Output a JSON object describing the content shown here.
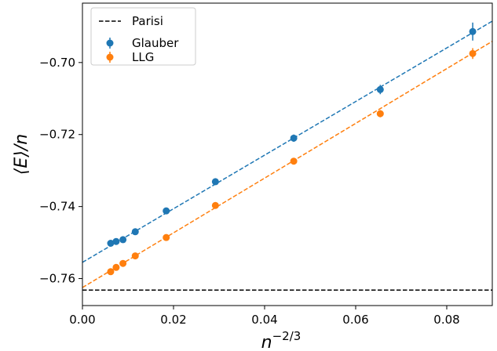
{
  "chart_data": {
    "type": "scatter",
    "xlabel": "n",
    "xlabel_sup": "−2/3",
    "ylabel": "⟨E⟩/n",
    "xlim": [
      0.0,
      0.09
    ],
    "ylim": [
      -0.7675,
      -0.6835
    ],
    "x_ticks": [
      0.0,
      0.02,
      0.04,
      0.06,
      0.08
    ],
    "x_tick_labels": [
      "0.00",
      "0.02",
      "0.04",
      "0.06",
      "0.08"
    ],
    "y_ticks": [
      -0.76,
      -0.74,
      -0.72,
      -0.7
    ],
    "y_tick_labels": [
      "−0.76",
      "−0.74",
      "−0.72",
      "−0.70"
    ],
    "grid": false,
    "legend_position": "top-left",
    "reference_line": {
      "name": "Parisi",
      "y": -0.7632,
      "color": "#000000",
      "style": "dashed"
    },
    "series": [
      {
        "name": "Glauber",
        "color": "#1f77b4",
        "points": [
          {
            "x": 0.0062,
            "y": -0.7502,
            "err": 0.0008
          },
          {
            "x": 0.0074,
            "y": -0.7497,
            "err": 0.0008
          },
          {
            "x": 0.0089,
            "y": -0.7492,
            "err": 0.0008
          },
          {
            "x": 0.0116,
            "y": -0.747,
            "err": 0.0008
          },
          {
            "x": 0.0184,
            "y": -0.7412,
            "err": 0.0008
          },
          {
            "x": 0.0292,
            "y": -0.7331,
            "err": 0.0008
          },
          {
            "x": 0.0464,
            "y": -0.721,
            "err": 0.001
          },
          {
            "x": 0.0654,
            "y": -0.7075,
            "err": 0.0013
          },
          {
            "x": 0.0857,
            "y": -0.6914,
            "err": 0.0025
          }
        ],
        "fit": {
          "x0": 0.0,
          "y0": -0.7555,
          "x1": 0.09,
          "y1": -0.6885
        }
      },
      {
        "name": "LLG",
        "color": "#ff7f0e",
        "points": [
          {
            "x": 0.0062,
            "y": -0.7581,
            "err": 0.0008
          },
          {
            "x": 0.0074,
            "y": -0.7569,
            "err": 0.0008
          },
          {
            "x": 0.0089,
            "y": -0.7558,
            "err": 0.0008
          },
          {
            "x": 0.0116,
            "y": -0.7537,
            "err": 0.0008
          },
          {
            "x": 0.0184,
            "y": -0.7486,
            "err": 0.0008
          },
          {
            "x": 0.0292,
            "y": -0.7397,
            "err": 0.0008
          },
          {
            "x": 0.0464,
            "y": -0.7274,
            "err": 0.0008
          },
          {
            "x": 0.0654,
            "y": -0.7142,
            "err": 0.001
          },
          {
            "x": 0.0857,
            "y": -0.6975,
            "err": 0.0015
          }
        ],
        "fit": {
          "x0": 0.0,
          "y0": -0.7625,
          "x1": 0.09,
          "y1": -0.6941
        }
      }
    ]
  }
}
